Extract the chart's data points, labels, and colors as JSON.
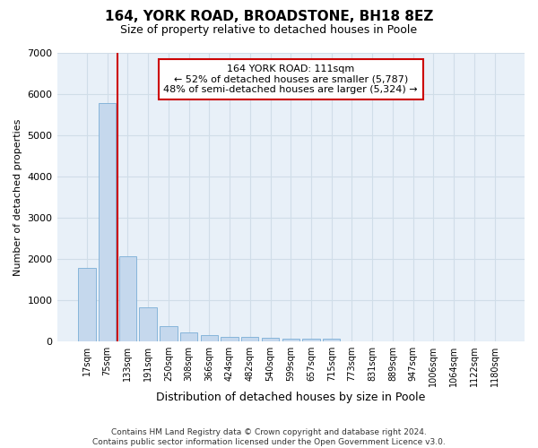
{
  "title": "164, YORK ROAD, BROADSTONE, BH18 8EZ",
  "subtitle": "Size of property relative to detached houses in Poole",
  "xlabel": "Distribution of detached houses by size in Poole",
  "ylabel": "Number of detached properties",
  "footer_line1": "Contains HM Land Registry data © Crown copyright and database right 2024.",
  "footer_line2": "Contains public sector information licensed under the Open Government Licence v3.0.",
  "bar_labels": [
    "17sqm",
    "75sqm",
    "133sqm",
    "191sqm",
    "250sqm",
    "308sqm",
    "366sqm",
    "424sqm",
    "482sqm",
    "540sqm",
    "599sqm",
    "657sqm",
    "715sqm",
    "773sqm",
    "831sqm",
    "889sqm",
    "947sqm",
    "1006sqm",
    "1064sqm",
    "1122sqm",
    "1180sqm"
  ],
  "bar_values": [
    1780,
    5790,
    2060,
    830,
    370,
    220,
    145,
    110,
    105,
    80,
    75,
    70,
    65,
    0,
    0,
    0,
    0,
    0,
    0,
    0,
    0
  ],
  "bar_color": "#c5d8ed",
  "bar_edgecolor": "#7aaed6",
  "ylim": [
    0,
    7000
  ],
  "yticks": [
    0,
    1000,
    2000,
    3000,
    4000,
    5000,
    6000,
    7000
  ],
  "vline_x": 1.5,
  "vline_color": "#cc0000",
  "ann_line1": "164 YORK ROAD: 111sqm",
  "ann_line2": "← 52% of detached houses are smaller (5,787)",
  "ann_line3": "48% of semi-detached houses are larger (5,324) →",
  "annotation_box_facecolor": "#ffffff",
  "annotation_box_edgecolor": "#cc0000",
  "grid_color": "#d0dde8",
  "plot_bg_color": "#e8f0f8",
  "fig_bg_color": "#ffffff",
  "fig_width": 6.0,
  "fig_height": 5.0,
  "title_fontsize": 11,
  "subtitle_fontsize": 9,
  "ylabel_fontsize": 8,
  "xlabel_fontsize": 9,
  "ytick_fontsize": 8,
  "xtick_fontsize": 7,
  "footer_fontsize": 6.5,
  "ann_fontsize": 8
}
